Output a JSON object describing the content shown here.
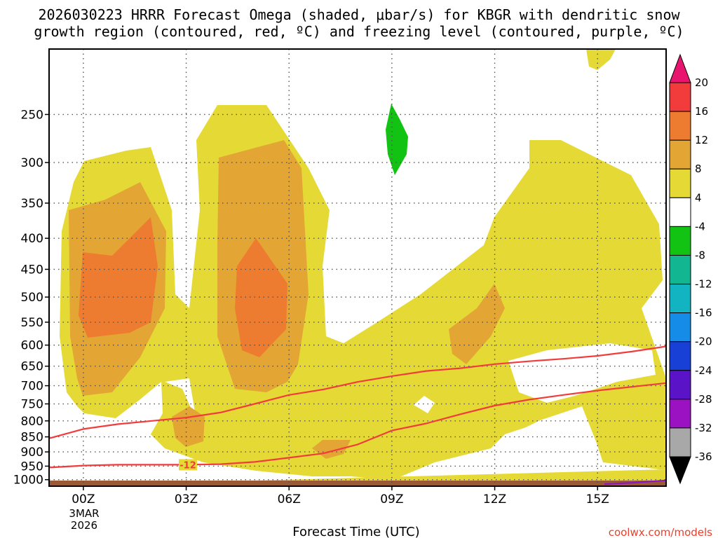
{
  "chart_data": {
    "type": "heatmap",
    "title_line1": "2026030223 HRRR Forecast Omega (shaded, μbar/s) for KBGR with dendritic snow",
    "title_line2": "growth region (contoured, red, ºC) and freezing level (contoured, purple, ºC)",
    "xlabel": "Forecast Time (UTC)",
    "x_ticks": [
      "00Z",
      "03Z",
      "06Z",
      "09Z",
      "12Z",
      "15Z"
    ],
    "x_tick_hours": [
      0,
      3,
      6,
      9,
      12,
      15
    ],
    "x_date_label": [
      "3MAR",
      "2026"
    ],
    "xlim_hours": [
      -1,
      17
    ],
    "y_ticks": [
      250,
      300,
      350,
      400,
      450,
      500,
      550,
      600,
      650,
      700,
      750,
      800,
      850,
      900,
      950,
      1000
    ],
    "ylim_mb": [
      195,
      1025
    ],
    "y_scale": "log-pressure",
    "grid": true,
    "colorbar": {
      "labels": [
        "20",
        "16",
        "12",
        "8",
        "4",
        "-4",
        "-8",
        "-12",
        "-16",
        "-20",
        "-24",
        "-28",
        "-32",
        "-36"
      ],
      "colors": [
        "#e8156e",
        "#f23c3c",
        "#ee7c30",
        "#e3a533",
        "#e4d935",
        "#ffffff",
        "#13c313",
        "#12b691",
        "#13b4c2",
        "#148ce8",
        "#1840d6",
        "#5b13c8",
        "#9a12c2",
        "#a8a8a8",
        "#000000"
      ]
    },
    "shading": {
      "omega_4_8_color": "#e4d935",
      "omega_8_12_color": "#e3a533",
      "omega_12_16_color": "#ee7c30",
      "omega_neg4_neg8_color": "#13c313",
      "terrain_color": "#9a5a35"
    },
    "red_contour": {
      "color": "#f23c3c",
      "label": "-12",
      "upper_line": [
        [
          -1,
          855
        ],
        [
          0,
          825
        ],
        [
          1,
          810
        ],
        [
          2,
          800
        ],
        [
          3,
          790
        ],
        [
          4,
          775
        ],
        [
          5,
          750
        ],
        [
          6,
          725
        ],
        [
          7,
          710
        ],
        [
          8,
          690
        ],
        [
          9,
          675
        ],
        [
          10,
          662
        ],
        [
          11,
          655
        ],
        [
          12,
          645
        ],
        [
          13,
          638
        ],
        [
          14,
          632
        ],
        [
          15,
          625
        ],
        [
          16,
          615
        ],
        [
          17,
          603
        ]
      ],
      "lower_line": [
        [
          -1,
          955
        ],
        [
          0,
          948
        ],
        [
          1,
          945
        ],
        [
          2,
          945
        ],
        [
          3,
          945
        ],
        [
          4,
          943
        ],
        [
          5,
          935
        ],
        [
          6,
          920
        ],
        [
          7,
          905
        ],
        [
          8,
          875
        ],
        [
          9,
          830
        ],
        [
          10,
          808
        ],
        [
          11,
          780
        ],
        [
          12,
          755
        ],
        [
          13,
          738
        ],
        [
          14,
          725
        ],
        [
          15,
          713
        ],
        [
          16,
          703
        ],
        [
          17,
          693
        ]
      ]
    },
    "purple_contour": {
      "color": "#8a16c8",
      "line": [
        [
          15.2,
          1017
        ],
        [
          16,
          1012
        ],
        [
          17,
          1003
        ]
      ]
    }
  },
  "credit": "coolwx.com/models"
}
